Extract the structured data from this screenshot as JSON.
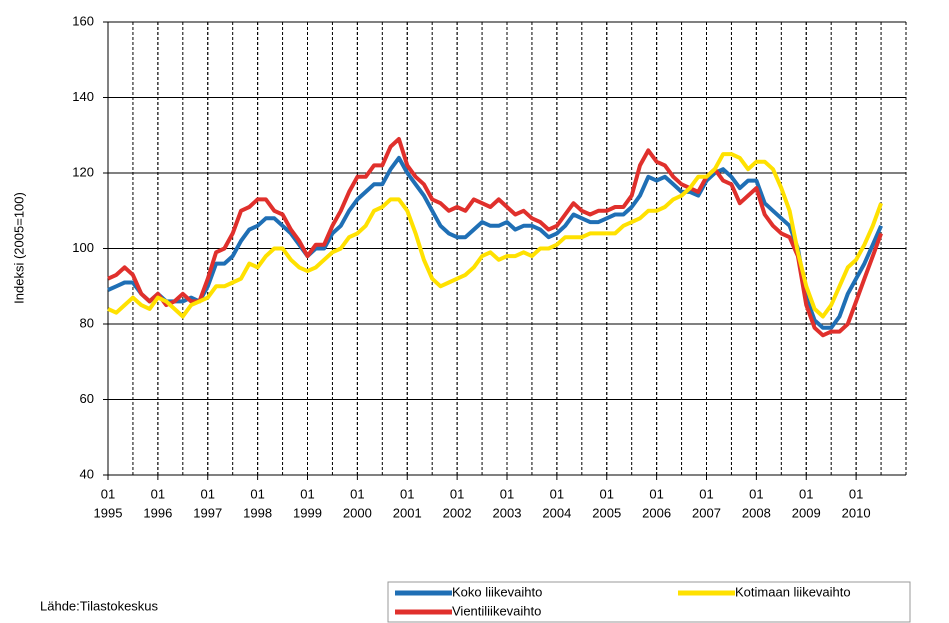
{
  "chart_data": {
    "type": "line",
    "ylabel": "Indeksi (2005=100)",
    "source": "Lähde:Tilastokeskus",
    "x": [
      "1995-01",
      "1995-03",
      "1995-05",
      "1995-07",
      "1995-09",
      "1995-11",
      "1996-01",
      "1996-03",
      "1996-05",
      "1996-07",
      "1996-09",
      "1996-11",
      "1997-01",
      "1997-03",
      "1997-05",
      "1997-07",
      "1997-09",
      "1997-11",
      "1998-01",
      "1998-03",
      "1998-05",
      "1998-07",
      "1998-09",
      "1998-11",
      "1999-01",
      "1999-03",
      "1999-05",
      "1999-07",
      "1999-09",
      "1999-11",
      "2000-01",
      "2000-03",
      "2000-05",
      "2000-07",
      "2000-09",
      "2000-11",
      "2001-01",
      "2001-03",
      "2001-05",
      "2001-07",
      "2001-09",
      "2001-11",
      "2002-01",
      "2002-03",
      "2002-05",
      "2002-07",
      "2002-09",
      "2002-11",
      "2003-01",
      "2003-03",
      "2003-05",
      "2003-07",
      "2003-09",
      "2003-11",
      "2004-01",
      "2004-03",
      "2004-05",
      "2004-07",
      "2004-09",
      "2004-11",
      "2005-01",
      "2005-03",
      "2005-05",
      "2005-07",
      "2005-09",
      "2005-11",
      "2006-01",
      "2006-03",
      "2006-05",
      "2006-07",
      "2006-09",
      "2006-11",
      "2007-01",
      "2007-03",
      "2007-05",
      "2007-07",
      "2007-09",
      "2007-11",
      "2008-01",
      "2008-03",
      "2008-05",
      "2008-07",
      "2008-09",
      "2008-11",
      "2009-01",
      "2009-03",
      "2009-05",
      "2009-07",
      "2009-09",
      "2009-11",
      "2010-01",
      "2010-03",
      "2010-05",
      "2010-07"
    ],
    "series": [
      {
        "name": "Koko liikevaihto",
        "color": "#1f6fb5",
        "values": [
          89,
          90,
          91,
          91,
          88,
          86,
          88,
          86,
          86,
          86,
          87,
          86,
          90,
          96,
          96,
          98,
          102,
          105,
          106,
          108,
          108,
          106,
          104,
          101,
          98,
          100,
          100,
          104,
          106,
          110,
          113,
          115,
          117,
          117,
          121,
          124,
          120,
          117,
          114,
          110,
          106,
          104,
          103,
          103,
          105,
          107,
          106,
          106,
          107,
          105,
          106,
          106,
          105,
          103,
          104,
          106,
          109,
          108,
          107,
          107,
          108,
          109,
          109,
          111,
          114,
          119,
          118,
          119,
          117,
          115,
          115,
          114,
          118,
          120,
          121,
          119,
          116,
          118,
          118,
          112,
          110,
          108,
          106,
          100,
          87,
          81,
          79,
          79,
          82,
          88,
          92,
          96,
          101,
          106
        ]
      },
      {
        "name": "Kotimaan liikevaihto",
        "color": "#ffe100",
        "values": [
          84,
          83,
          85,
          87,
          85,
          84,
          87,
          86,
          84,
          82,
          85,
          86,
          87,
          90,
          90,
          91,
          92,
          96,
          95,
          98,
          100,
          100,
          97,
          95,
          94,
          95,
          97,
          99,
          100,
          103,
          104,
          106,
          110,
          111,
          113,
          113,
          110,
          104,
          97,
          92,
          90,
          91,
          92,
          93,
          95,
          98,
          99,
          97,
          98,
          98,
          99,
          98,
          100,
          100,
          101,
          103,
          103,
          103,
          104,
          104,
          104,
          104,
          106,
          107,
          108,
          110,
          110,
          111,
          113,
          114,
          116,
          119,
          119,
          121,
          125,
          125,
          124,
          121,
          123,
          123,
          121,
          116,
          110,
          99,
          90,
          84,
          82,
          85,
          90,
          95,
          97,
          101,
          106,
          112
        ]
      },
      {
        "name": "Vientiliikevaihto",
        "color": "#e0302c",
        "values": [
          92,
          93,
          95,
          93,
          88,
          86,
          88,
          85,
          86,
          88,
          86,
          86,
          92,
          99,
          100,
          104,
          110,
          111,
          113,
          113,
          110,
          109,
          105,
          102,
          98,
          101,
          101,
          106,
          110,
          115,
          119,
          119,
          122,
          122,
          127,
          129,
          122,
          119,
          117,
          113,
          112,
          110,
          111,
          110,
          113,
          112,
          111,
          113,
          111,
          109,
          110,
          108,
          107,
          105,
          106,
          109,
          112,
          110,
          109,
          110,
          110,
          111,
          111,
          114,
          122,
          126,
          123,
          122,
          119,
          117,
          116,
          115,
          119,
          121,
          118,
          117,
          112,
          114,
          116,
          109,
          106,
          104,
          103,
          98,
          85,
          79,
          77,
          78,
          78,
          80,
          86,
          92,
          98,
          104
        ]
      }
    ],
    "xlim": [
      "1995-01",
      "2010-12"
    ],
    "xticks": [
      {
        "value": "1995-01",
        "label": [
          "01",
          "1995"
        ]
      },
      {
        "value": "1996-01",
        "label": [
          "01",
          "1996"
        ]
      },
      {
        "value": "1997-01",
        "label": [
          "01",
          "1997"
        ]
      },
      {
        "value": "1998-01",
        "label": [
          "01",
          "1998"
        ]
      },
      {
        "value": "1999-01",
        "label": [
          "01",
          "1999"
        ]
      },
      {
        "value": "2000-01",
        "label": [
          "01",
          "2000"
        ]
      },
      {
        "value": "2001-01",
        "label": [
          "01",
          "2001"
        ]
      },
      {
        "value": "2002-01",
        "label": [
          "01",
          "2002"
        ]
      },
      {
        "value": "2003-01",
        "label": [
          "01",
          "2003"
        ]
      },
      {
        "value": "2004-01",
        "label": [
          "01",
          "2004"
        ]
      },
      {
        "value": "2005-01",
        "label": [
          "01",
          "2005"
        ]
      },
      {
        "value": "2006-01",
        "label": [
          "01",
          "2006"
        ]
      },
      {
        "value": "2007-01",
        "label": [
          "01",
          "2007"
        ]
      },
      {
        "value": "2008-01",
        "label": [
          "01",
          "2008"
        ]
      },
      {
        "value": "2009-01",
        "label": [
          "01",
          "2009"
        ]
      },
      {
        "value": "2010-01",
        "label": [
          "01",
          "2010"
        ]
      }
    ],
    "ylim": [
      40,
      160
    ],
    "yticks": [
      40,
      60,
      80,
      100,
      120,
      140,
      160
    ],
    "grid": true
  }
}
